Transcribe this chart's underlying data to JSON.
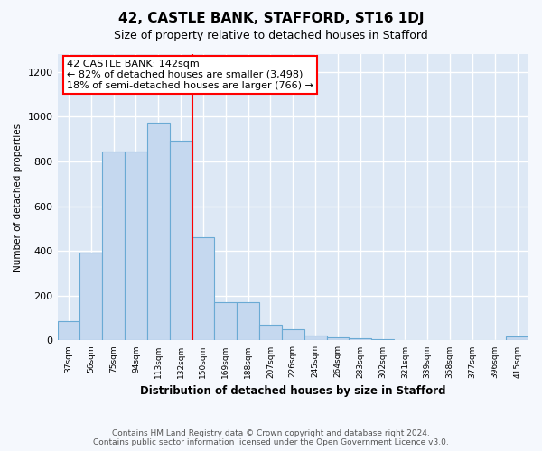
{
  "title": "42, CASTLE BANK, STAFFORD, ST16 1DJ",
  "subtitle": "Size of property relative to detached houses in Stafford",
  "xlabel": "Distribution of detached houses by size in Stafford",
  "ylabel": "Number of detached properties",
  "footer_line1": "Contains HM Land Registry data © Crown copyright and database right 2024.",
  "footer_line2": "Contains public sector information licensed under the Open Government Licence v3.0.",
  "categories": [
    "37sqm",
    "56sqm",
    "75sqm",
    "94sqm",
    "113sqm",
    "132sqm",
    "150sqm",
    "169sqm",
    "188sqm",
    "207sqm",
    "226sqm",
    "245sqm",
    "264sqm",
    "283sqm",
    "302sqm",
    "321sqm",
    "339sqm",
    "358sqm",
    "377sqm",
    "396sqm",
    "415sqm"
  ],
  "values": [
    88,
    393,
    843,
    843,
    975,
    893,
    460,
    170,
    170,
    70,
    50,
    20,
    15,
    10,
    5,
    3,
    2,
    2,
    1,
    1,
    18
  ],
  "bar_color": "#c5d8ef",
  "bar_edge_color": "#6aaad4",
  "property_label": "42 CASTLE BANK: 142sqm",
  "annotation_line1": "← 82% of detached houses are smaller (3,498)",
  "annotation_line2": "18% of semi-detached houses are larger (766) →",
  "vline_color": "red",
  "annotation_box_color": "white",
  "annotation_box_edge_color": "red",
  "ylim": [
    0,
    1280
  ],
  "yticks": [
    0,
    200,
    400,
    600,
    800,
    1000,
    1200
  ],
  "fig_bg_color": "#f5f8fd",
  "plot_bg_color": "#dde8f5",
  "title_fontsize": 11,
  "subtitle_fontsize": 9,
  "footer_fontsize": 6.5,
  "vline_bar_index": 6
}
